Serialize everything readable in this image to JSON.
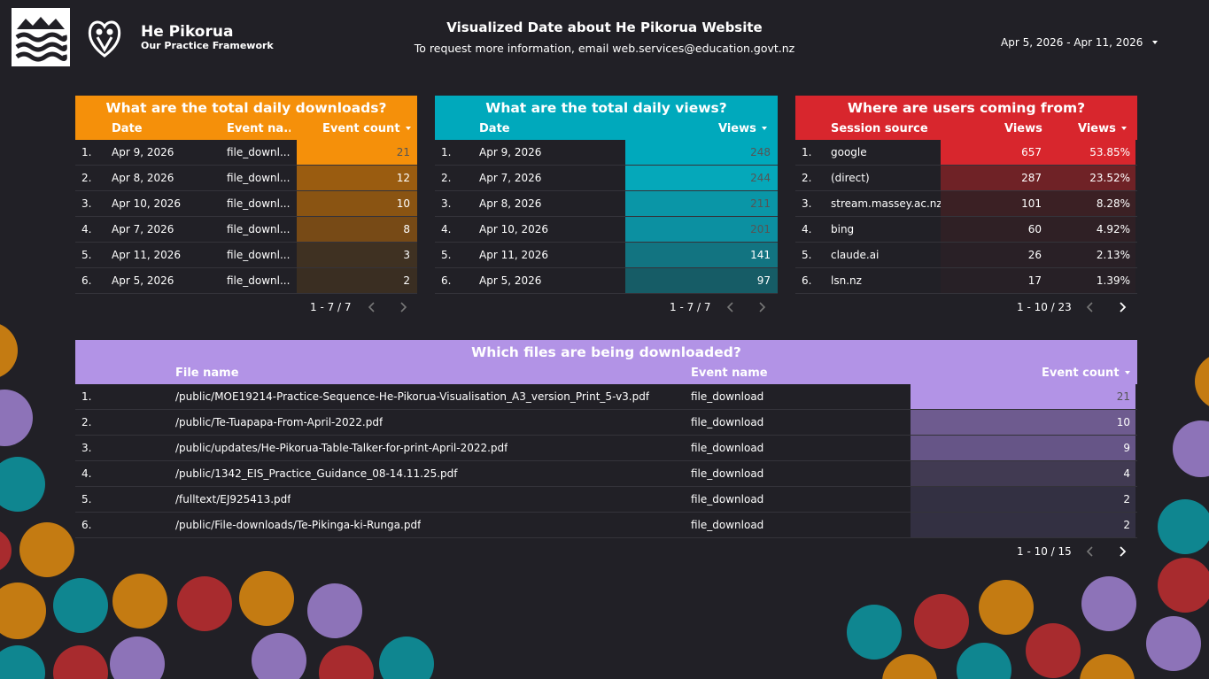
{
  "header": {
    "brand_name": "He Pikorua",
    "brand_subtitle": "Our Practice Framework",
    "title": "Visualized Date about He Pikorua Website",
    "subtitle": "To request more information, email web.services@education.govt.nz",
    "date_range": "Apr 5, 2026 - Apr 11, 2026",
    "icons": [
      "ministry-logo-icon",
      "he-pikorua-logo-icon",
      "chevron-down-icon"
    ]
  },
  "colors": {
    "background": "#212026",
    "downloads_accent": "#f5900a",
    "views_accent": "#00a9bc",
    "sources_accent": "#d8262d",
    "files_accent": "#b293e6"
  },
  "downloads": {
    "title": "What are the total daily downloads?",
    "columns": [
      "Date",
      "Event na...",
      "Event count"
    ],
    "rows": [
      {
        "index": "1.",
        "date": "Apr 9, 2026",
        "event": "file_downl...",
        "count": "21"
      },
      {
        "index": "2.",
        "date": "Apr 8, 2026",
        "event": "file_downl...",
        "count": "12"
      },
      {
        "index": "3.",
        "date": "Apr 10, 2026",
        "event": "file_downl...",
        "count": "10"
      },
      {
        "index": "4.",
        "date": "Apr 7, 2026",
        "event": "file_downl...",
        "count": "8"
      },
      {
        "index": "5.",
        "date": "Apr 11, 2026",
        "event": "file_downl...",
        "count": "3"
      },
      {
        "index": "6.",
        "date": "Apr 5, 2026",
        "event": "file_downl...",
        "count": "2"
      }
    ],
    "pager": "1 - 7 / 7"
  },
  "views": {
    "title": "What are the total daily views?",
    "columns": [
      "Date",
      "Views"
    ],
    "rows": [
      {
        "index": "1.",
        "date": "Apr 9, 2026",
        "views": "248"
      },
      {
        "index": "2.",
        "date": "Apr 7, 2026",
        "views": "244"
      },
      {
        "index": "3.",
        "date": "Apr 8, 2026",
        "views": "211"
      },
      {
        "index": "4.",
        "date": "Apr 10, 2026",
        "views": "201"
      },
      {
        "index": "5.",
        "date": "Apr 11, 2026",
        "views": "141"
      },
      {
        "index": "6.",
        "date": "Apr 5, 2026",
        "views": "97"
      }
    ],
    "pager": "1 - 7 / 7"
  },
  "sources": {
    "title": "Where are users coming from?",
    "columns": [
      "Session source",
      "Views",
      "Views"
    ],
    "rows": [
      {
        "index": "1.",
        "source": "google",
        "views": "657",
        "pct": "53.85%"
      },
      {
        "index": "2.",
        "source": "(direct)",
        "views": "287",
        "pct": "23.52%"
      },
      {
        "index": "3.",
        "source": "stream.massey.ac.nz",
        "views": "101",
        "pct": "8.28%"
      },
      {
        "index": "4.",
        "source": "bing",
        "views": "60",
        "pct": "4.92%"
      },
      {
        "index": "5.",
        "source": "claude.ai",
        "views": "26",
        "pct": "2.13%"
      },
      {
        "index": "6.",
        "source": "lsn.nz",
        "views": "17",
        "pct": "1.39%"
      }
    ],
    "pager": "1 - 10 / 23"
  },
  "files": {
    "title": "Which files are being downloaded?",
    "columns": [
      "File name",
      "Event name",
      "Event count"
    ],
    "rows": [
      {
        "index": "1.",
        "file": "/public/MOE19214-Practice-Sequence-He-Pikorua-Visualisation_A3_version_Print_5-v3.pdf",
        "event": "file_download",
        "count": "21"
      },
      {
        "index": "2.",
        "file": "/public/Te-Tuapapa-From-April-2022.pdf",
        "event": "file_download",
        "count": "10"
      },
      {
        "index": "3.",
        "file": "/public/updates/He-Pikorua-Table-Talker-for-print-April-2022.pdf",
        "event": "file_download",
        "count": "9"
      },
      {
        "index": "4.",
        "file": "/public/1342_EIS_Practice_Guidance_08-14.11.25.pdf",
        "event": "file_download",
        "count": "4"
      },
      {
        "index": "5.",
        "file": "/fulltext/EJ925413.pdf",
        "event": "file_download",
        "count": "2"
      },
      {
        "index": "6.",
        "file": "/public/File-downloads/Te-Pikinga-ki-Runga.pdf",
        "event": "file_download",
        "count": "2"
      }
    ],
    "pager": "1 - 10 / 15"
  }
}
